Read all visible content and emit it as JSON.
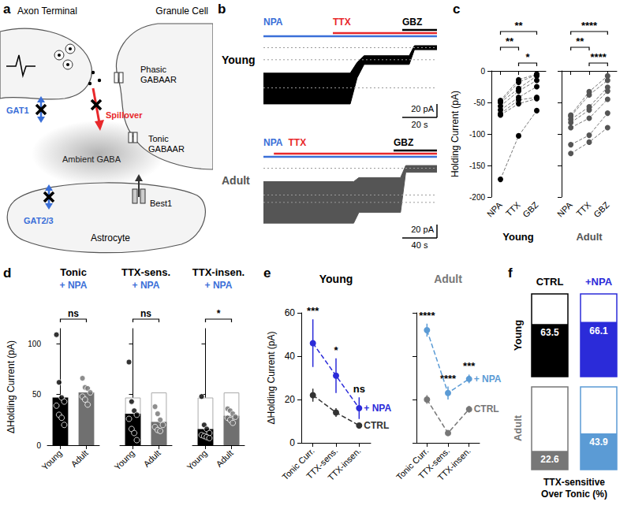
{
  "diagram": {
    "label": "a",
    "axon_terminal": "Axon Terminal",
    "granule_cell": "Granule Cell",
    "phasic_receptor": "Phasic GABAAR",
    "tonic_receptor": "Tonic GABAAR",
    "gat1": "GAT1",
    "spillover": "Spillover",
    "ambient": "Ambient GABA",
    "gat23": "GAT2/3",
    "best1": "Best1",
    "astrocyte": "Astrocyte"
  },
  "chart_data": [
    {
      "panel": "b",
      "type": "trace",
      "title": "Young",
      "color": "#000000",
      "x": [
        0,
        50,
        54,
        58,
        84,
        87,
        100
      ],
      "upper": [
        -38,
        -38,
        -22,
        -12,
        -12,
        3,
        3
      ],
      "lower": [
        -84,
        -84,
        -45,
        -25,
        -25,
        -3,
        -3
      ],
      "levels": [
        -60,
        -18,
        0
      ],
      "xlim": [
        0,
        100
      ],
      "ylim": [
        -90,
        10
      ],
      "tick_labels": false,
      "treatments": [
        {
          "name": "NPA",
          "start": 0,
          "color": "#3a6fd8"
        },
        {
          "name": "TTX",
          "start": 40,
          "color": "#e8282b"
        },
        {
          "name": "GBZ",
          "start": 80,
          "color": "#000000"
        }
      ],
      "scale_bar": {
        "y": 20,
        "y_label": "20 pA",
        "x": 20,
        "x_label": "20 s"
      }
    },
    {
      "type": "trace",
      "title": "Adult",
      "color": "#555555",
      "x": [
        0,
        104,
        110,
        158,
        164,
        200
      ],
      "upper": [
        -20,
        -20,
        -14,
        -14,
        4,
        4
      ],
      "lower": [
        -82,
        -82,
        -66,
        -66,
        -6,
        -6
      ],
      "levels": [
        -51,
        -40,
        0
      ],
      "xlim": [
        0,
        200
      ],
      "ylim": [
        -90,
        10
      ],
      "tick_labels": false,
      "treatments": [
        {
          "name": "NPA",
          "start": 0,
          "color": "#3a6fd8"
        },
        {
          "name": "TTX",
          "start": 12,
          "color": "#e8282b"
        },
        {
          "name": "GBZ",
          "start": 150,
          "color": "#000000"
        }
      ],
      "scale_bar": {
        "y": 20,
        "y_label": "20 pA",
        "x": 40,
        "x_label": "40 s"
      }
    },
    {
      "panel": "c",
      "type": "paired",
      "title": "Young",
      "color": "#000000",
      "categories": [
        "NPA",
        "TTX",
        "GBZ"
      ],
      "cells": [
        [
          -172,
          -103,
          -63
        ],
        [
          -70,
          -52,
          -44
        ],
        [
          -68,
          -46,
          -42
        ],
        [
          -62,
          -42,
          -25
        ],
        [
          -56,
          -32,
          -15
        ],
        [
          -50,
          -28,
          -8
        ],
        [
          -49,
          -18,
          -6
        ],
        [
          -47,
          -14,
          -5
        ]
      ],
      "ylim": [
        -200,
        0
      ],
      "yticks": [
        -200,
        -150,
        -100,
        -50,
        0
      ],
      "ylabel": "Holding Current (pA)",
      "line_style": "dashed",
      "marker": "circle",
      "significance": [
        {
          "from": "NPA",
          "to": "GBZ",
          "text": "**"
        },
        {
          "from": "NPA",
          "to": "TTX",
          "text": "**"
        },
        {
          "from": "TTX",
          "to": "GBZ",
          "text": "*"
        }
      ]
    },
    {
      "type": "paired",
      "title": "Adult",
      "color": "#555555",
      "categories": [
        "NPA",
        "TTX",
        "GBZ"
      ],
      "cells": [
        [
          -131,
          -113,
          -90
        ],
        [
          -117,
          -102,
          -67
        ],
        [
          -90,
          -75,
          -45
        ],
        [
          -82,
          -62,
          -32
        ],
        [
          -77,
          -57,
          -26
        ],
        [
          -72,
          -38,
          -15
        ],
        [
          -70,
          -33,
          -8
        ]
      ],
      "ylim": [
        -200,
        0
      ],
      "yticks": [
        -200,
        -150,
        -100,
        -50,
        0
      ],
      "tick_labels": "x",
      "line_style": "dashed",
      "marker": "circle",
      "significance": [
        {
          "from": "NPA",
          "to": "GBZ",
          "text": "****"
        },
        {
          "from": "NPA",
          "to": "TTX",
          "text": "**"
        },
        {
          "from": "TTX",
          "to": "GBZ",
          "text": "****"
        }
      ]
    },
    {
      "panel": "d",
      "type": "bar",
      "title": "Tonic",
      "subtitle": "+ NPA",
      "categories": [
        "Young",
        "Adult"
      ],
      "values": [
        47,
        52
      ],
      "colors": [
        "#000000",
        "#707070"
      ],
      "points": [
        [
          109,
          62,
          47,
          43,
          39,
          30,
          27,
          20
        ],
        [
          66,
          57,
          56,
          52,
          48,
          45,
          40
        ]
      ],
      "ylim": [
        0,
        115
      ],
      "yticks": [
        0,
        50,
        100
      ],
      "ylabel": "ΔHolding Current (pA)",
      "significance": "ns"
    },
    {
      "type": "bar",
      "title": "TTX-sens.",
      "subtitle": "+ NPA",
      "categories": [
        "Young",
        "Adult"
      ],
      "values": [
        31,
        23
      ],
      "colors": [
        "#000000",
        "#707070"
      ],
      "points": [
        [
          82,
          43,
          34,
          30,
          26,
          16,
          12,
          5
        ],
        [
          38,
          31,
          25,
          20,
          18,
          15,
          14
        ]
      ],
      "ylim": [
        0,
        115
      ],
      "yticks": [
        0,
        50,
        100
      ],
      "tick_labels": "x",
      "significance": "ns"
    },
    {
      "type": "bar",
      "title": "TTX-insen.",
      "subtitle": "+ NPA",
      "categories": [
        "Young",
        "Adult"
      ],
      "values": [
        16,
        29
      ],
      "colors": [
        "#000000",
        "#707070"
      ],
      "points": [
        [
          48,
          20,
          16,
          12,
          10,
          9,
          8,
          7
        ],
        [
          36,
          34,
          31,
          28,
          27,
          25,
          22
        ]
      ],
      "ylim": [
        0,
        115
      ],
      "yticks": [
        0,
        50,
        100
      ],
      "tick_labels": "x",
      "significance": "*"
    },
    {
      "panel": "e",
      "type": "line",
      "title": "Young",
      "color": "#000000",
      "categories": [
        "Tonic Curr.",
        "TTX-sens.",
        "TTX-insen."
      ],
      "series": [
        {
          "name": "CTRL",
          "color": "#333333",
          "values": [
            22,
            14,
            8
          ],
          "errors": [
            3,
            2,
            1
          ]
        },
        {
          "name": "+ NPA",
          "color": "#2b2bd9",
          "values": [
            46,
            31,
            16
          ],
          "errors": [
            11,
            8,
            5
          ]
        }
      ],
      "significance": [
        "***",
        "*",
        "ns"
      ],
      "ylim": [
        0,
        60
      ],
      "yticks": [
        0,
        20,
        40,
        60
      ],
      "ylabel": "ΔHolding Current (pA)",
      "line_style": "dashed",
      "marker": "circle"
    },
    {
      "type": "line",
      "title": "Adult",
      "color": "#777777",
      "categories": [
        "Tonic Curr.",
        "TTX-sens.",
        "TTX-insen."
      ],
      "series": [
        {
          "name": "CTRL",
          "color": "#777777",
          "values": [
            20,
            4.5,
            15.5
          ],
          "errors": [
            2,
            1,
            1.5
          ]
        },
        {
          "name": "+ NPA",
          "color": "#5b9bd5",
          "values": [
            52,
            23,
            29.5
          ],
          "errors": [
            3,
            3,
            2
          ]
        }
      ],
      "significance": [
        "****",
        "****",
        "***"
      ],
      "ylim": [
        0,
        60
      ],
      "yticks": [
        0,
        20,
        40,
        60
      ],
      "tick_labels": "x",
      "line_style": "dashed",
      "marker": "circle"
    },
    {
      "panel": "f",
      "type": "fill",
      "categories": [
        "CTRL",
        "+NPA"
      ],
      "series": [
        {
          "name": "Young",
          "colors": [
            "#000000",
            "#2b2bd9"
          ],
          "values": [
            63.5,
            66.1
          ]
        },
        {
          "name": "Adult",
          "colors": [
            "#777777",
            "#5b9bd5"
          ],
          "values": [
            22.6,
            43.9
          ]
        }
      ],
      "ylim": [
        0,
        100
      ],
      "xlabel": "TTX-sensitive Over Tonic (%)",
      "data_labels": true,
      "tick_labels": false
    }
  ]
}
